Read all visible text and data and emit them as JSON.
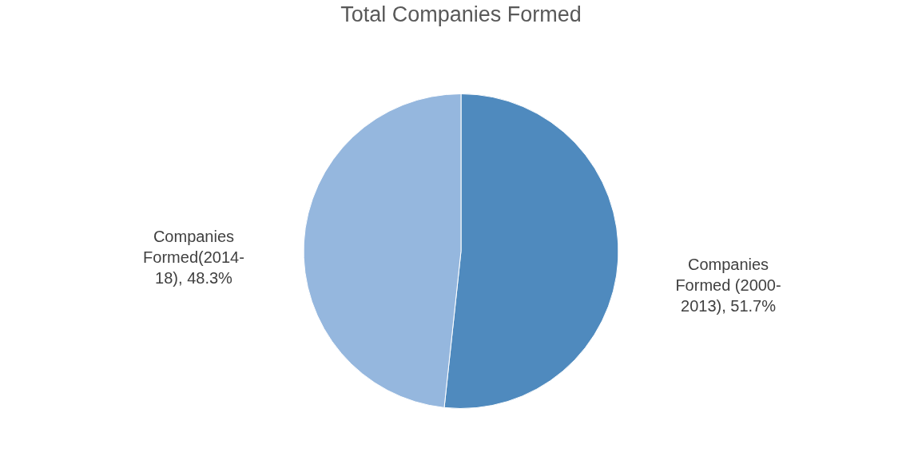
{
  "chart_data": {
    "type": "pie",
    "title": "Total Companies Formed",
    "categories": [
      "Companies Formed (2000-2013)",
      "Companies Formed(2014-18)"
    ],
    "values": [
      51.7,
      48.3
    ],
    "colors": [
      "#4f8abe",
      "#95b7de"
    ],
    "value_labels": [
      "51.7%",
      "48.3%"
    ],
    "legend": false
  }
}
